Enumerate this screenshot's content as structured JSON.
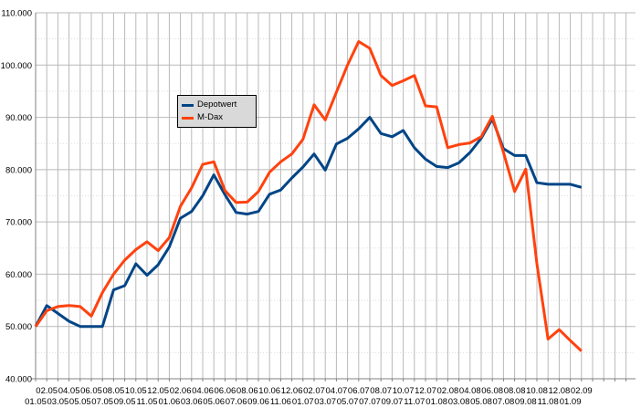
{
  "chart_data": {
    "type": "line",
    "title": "",
    "xlabel": "",
    "ylabel": "",
    "ylim": [
      40000,
      110000
    ],
    "y_tick_step": 10000,
    "y_tick_labels": [
      "40.000",
      "50.000",
      "60.000",
      "70.000",
      "80.000",
      "90.000",
      "100.000",
      "110.000"
    ],
    "grid": {
      "horizontal_major": true,
      "horizontal_minor_dashed": true,
      "vertical_monthly": true
    },
    "legend": {
      "position": "inside-upper-left"
    },
    "x_categories": [
      "01.05",
      "02.05",
      "03.05",
      "04.05",
      "05.05",
      "06.05",
      "07.05",
      "08.05",
      "09.05",
      "10.05",
      "11.05",
      "12.05",
      "01.06",
      "02.06",
      "03.06",
      "04.06",
      "05.06",
      "06.06",
      "07.06",
      "08.06",
      "09.06",
      "10.06",
      "11.06",
      "12.06",
      "01.07",
      "02.07",
      "03.07",
      "04.07",
      "05.07",
      "06.07",
      "07.07",
      "08.07",
      "09.07",
      "10.07",
      "11.07",
      "12.07",
      "01.08",
      "02.08",
      "03.08",
      "04.08",
      "05.08",
      "06.08",
      "07.08",
      "08.08",
      "09.08",
      "10.08",
      "11.08",
      "12.08",
      "01.09",
      "02.09"
    ],
    "series": [
      {
        "name": "Depotwert",
        "color": "#004586",
        "values": [
          50000,
          54000,
          52500,
          51000,
          50000,
          50000,
          50000,
          57000,
          57800,
          62000,
          59800,
          61800,
          65200,
          70700,
          72000,
          75000,
          79000,
          75200,
          71800,
          71500,
          72000,
          75300,
          76100,
          78400,
          80500,
          83000,
          79900,
          84900,
          86000,
          87800,
          90000,
          86900,
          86300,
          87500,
          84200,
          82000,
          80600,
          80400,
          81300,
          83300,
          86000,
          89700,
          84000,
          82700,
          82700,
          77500,
          77200,
          77200,
          77200,
          76600
        ]
      },
      {
        "name": "M-Dax",
        "color": "#ff420e",
        "values": [
          50000,
          53000,
          53800,
          54000,
          53800,
          52000,
          56500,
          60000,
          62700,
          64700,
          66200,
          64500,
          67000,
          73000,
          76500,
          81000,
          81500,
          76000,
          73700,
          73800,
          75800,
          79500,
          81500,
          83000,
          85800,
          92400,
          89500,
          94800,
          100000,
          104500,
          103200,
          98000,
          96100,
          97000,
          98000,
          92200,
          92000,
          84200,
          84800,
          85100,
          86300,
          90200,
          83300,
          75800,
          80100,
          62000,
          47600,
          49400,
          47300,
          45300
        ]
      }
    ],
    "colors": {
      "background": "#ffffff",
      "grid_major": "#b9b9b9",
      "grid_minor": "#dedede",
      "axis": "#808080",
      "tick_text": "#000000",
      "legend_background": "#d9d9d9",
      "legend_border": "#000000"
    }
  }
}
